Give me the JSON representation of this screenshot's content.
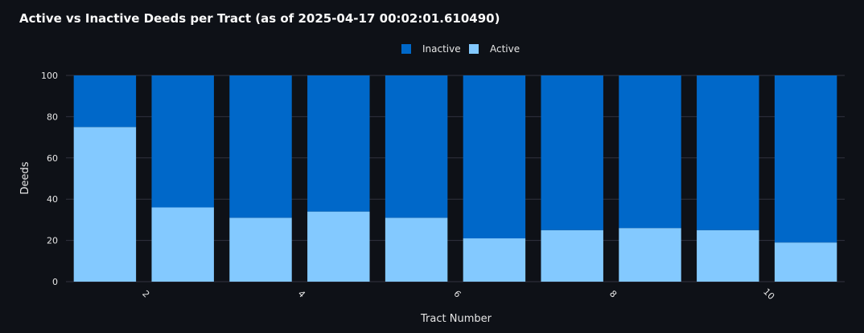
{
  "chart_data": {
    "type": "bar",
    "stacked": true,
    "title": "Active vs Inactive Deeds per Tract (as of 2025-04-17 00:02:01.610490)",
    "xlabel": "Tract Number",
    "ylabel": "Deeds",
    "categories": [
      1,
      2,
      3,
      4,
      5,
      6,
      7,
      8,
      9,
      10
    ],
    "x_tick_labels": [
      "2",
      "4",
      "6",
      "8",
      "10"
    ],
    "x_tick_values": [
      2,
      4,
      6,
      8,
      10
    ],
    "y_ticks": [
      0,
      20,
      40,
      60,
      80,
      100
    ],
    "ylim": [
      0,
      100
    ],
    "grid": true,
    "legend_position": "top-center",
    "series": [
      {
        "name": "Active",
        "color": "#83c9ff",
        "values": [
          75,
          36,
          31,
          34,
          31,
          21,
          25,
          26,
          25,
          19
        ]
      },
      {
        "name": "Inactive",
        "color": "#0068c9",
        "values": [
          25,
          64,
          69,
          66,
          69,
          79,
          75,
          74,
          75,
          81
        ]
      }
    ],
    "legend_order": [
      "Inactive",
      "Active"
    ]
  },
  "colors": {
    "background": "#0e1117",
    "grid": "#31333f",
    "text": "#fafafa"
  }
}
